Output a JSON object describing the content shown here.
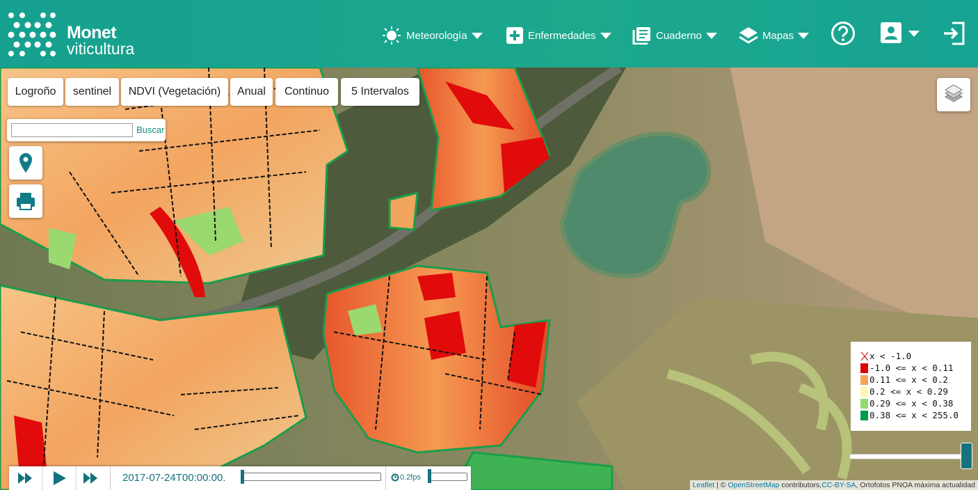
{
  "header": {
    "logo": {
      "brand": "Monet",
      "sub": "viticultura"
    },
    "nav": [
      "Meteorología",
      "Enfermedades",
      "Cuaderno",
      "Mapas"
    ]
  },
  "filters": [
    "Logroño",
    "sentinel",
    "NDVI (Vegetación)",
    "Anual",
    "Continuo",
    "5 Intervalos"
  ],
  "search": {
    "button": "Buscar"
  },
  "legend": {
    "items": [
      {
        "label": "x < -1.0",
        "color": "none"
      },
      {
        "label": "-1.0 <= x < 0.11",
        "color": "#e00000"
      },
      {
        "label": "0.11 <= x < 0.2",
        "color": "#f5a45a"
      },
      {
        "label": "0.2 <= x < 0.29",
        "color": "#fbf7b4"
      },
      {
        "label": "0.29 <= x < 0.38",
        "color": "#8fdc6a"
      },
      {
        "label": "0.38 <= x < 255.0",
        "color": "#009a4c"
      }
    ]
  },
  "player": {
    "time": "2017-07-24T00:00:00.",
    "fps": "0.2fps"
  },
  "attribution": {
    "leaflet": "Leaflet",
    "sep": "| ©",
    "osm": "OpenStreetMap",
    "contrib": "contributors,",
    "license": "CC-BY-SA",
    "rest": ", Ortofotos PNOA máxima actualidad"
  }
}
